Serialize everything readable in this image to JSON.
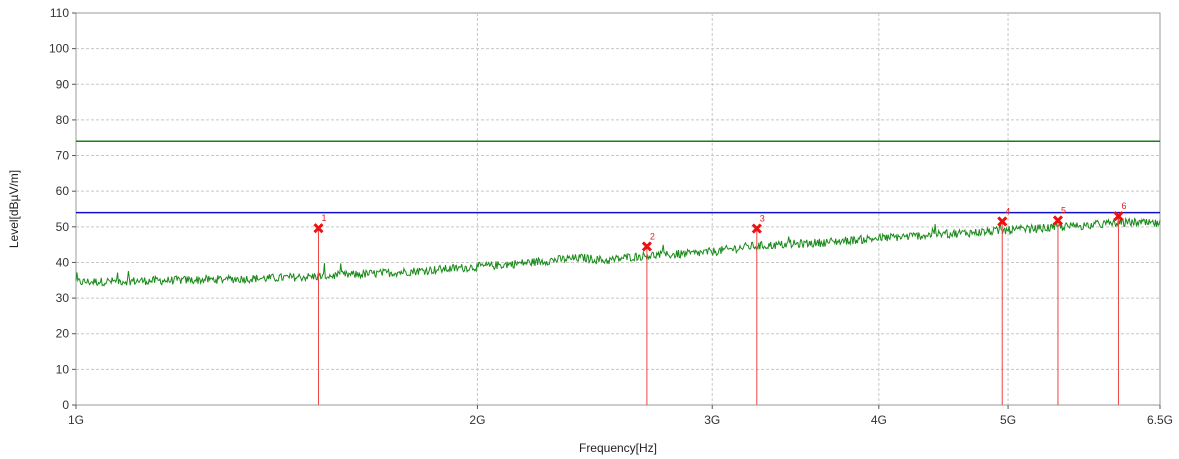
{
  "chart_data": {
    "type": "line",
    "xlabel": "Frequency[Hz]",
    "ylabel": "Level[dBµV/m]",
    "x_scale": "log",
    "xlim_hz": [
      1000000000,
      6500000000
    ],
    "ylim": [
      0,
      110
    ],
    "grid": true,
    "x_ticks": [
      {
        "value_hz": 1000000000,
        "label": "1G"
      },
      {
        "value_hz": 2000000000,
        "label": "2G"
      },
      {
        "value_hz": 3000000000,
        "label": "3G"
      },
      {
        "value_hz": 4000000000,
        "label": "4G"
      },
      {
        "value_hz": 5000000000,
        "label": "5G"
      },
      {
        "value_hz": 6500000000,
        "label": "6.5G"
      }
    ],
    "y_ticks": [
      0,
      10,
      20,
      30,
      40,
      50,
      60,
      70,
      80,
      90,
      100,
      110
    ],
    "limit_lines": [
      {
        "level": 74,
        "color": "#1a7f1a"
      },
      {
        "level": 54,
        "color": "#1010cc"
      }
    ],
    "series": [
      {
        "color": "#1a8a1a",
        "x_hz": [
          1000000000,
          1100000000,
          1200000000,
          1300000000,
          1400000000,
          1500000000,
          1600000000,
          1700000000,
          1800000000,
          1900000000,
          2000000000,
          2100000000,
          2200000000,
          2300000000,
          2400000000,
          2500000000,
          2600000000,
          2700000000,
          2800000000,
          2900000000,
          3000000000,
          3200000000,
          3400000000,
          3600000000,
          3800000000,
          4000000000,
          4200000000,
          4400000000,
          4600000000,
          4800000000,
          5000000000,
          5200000000,
          5400000000,
          5600000000,
          5800000000,
          6000000000,
          6200000000,
          6500000000
        ],
        "values": [
          34.5,
          34.8,
          35.0,
          35.3,
          35.6,
          36.0,
          36.5,
          37.0,
          37.6,
          38.2,
          38.8,
          39.4,
          40.1,
          40.8,
          41.3,
          40.5,
          41.5,
          42.0,
          42.2,
          42.5,
          43.0,
          44.5,
          45.0,
          45.5,
          46.2,
          46.8,
          47.3,
          47.8,
          48.2,
          48.6,
          49.0,
          49.4,
          49.8,
          50.2,
          50.6,
          51.0,
          51.2,
          50.8
        ]
      }
    ],
    "markers": [
      {
        "label": "1",
        "freq_hz": 1520000000,
        "level": 49.6
      },
      {
        "label": "2",
        "freq_hz": 2680000000,
        "level": 44.5
      },
      {
        "label": "3",
        "freq_hz": 3240000000,
        "level": 49.5
      },
      {
        "label": "4",
        "freq_hz": 4950000000,
        "level": 51.5
      },
      {
        "label": "5",
        "freq_hz": 5450000000,
        "level": 51.8
      },
      {
        "label": "6",
        "freq_hz": 6050000000,
        "level": 53.0
      }
    ]
  }
}
